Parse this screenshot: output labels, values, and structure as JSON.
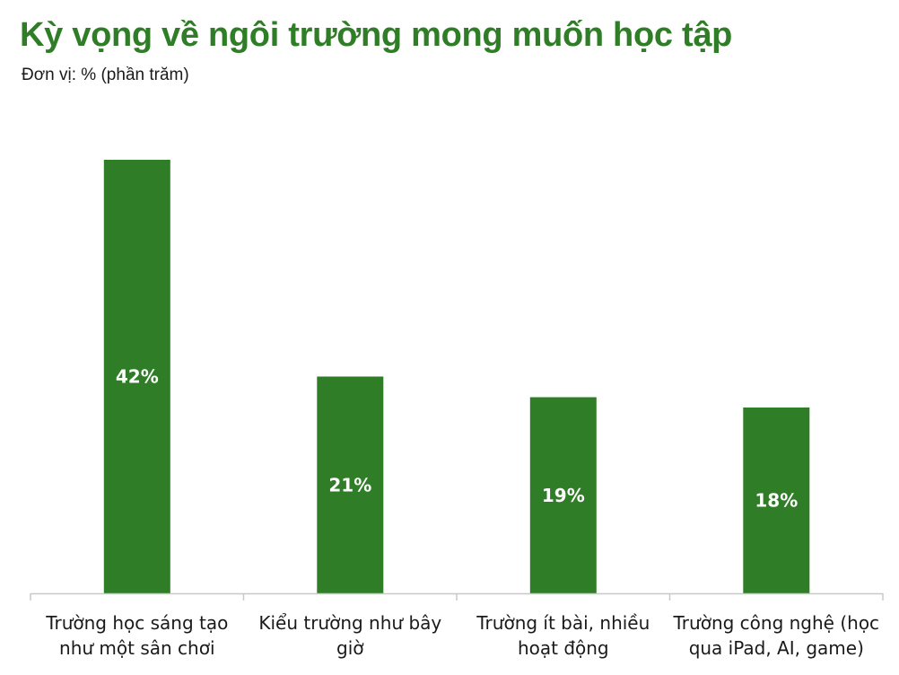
{
  "header": {
    "title": "Kỳ vọng về ngôi trường mong muốn học tập",
    "subtitle": "Đơn vị: % (phần trăm)"
  },
  "colors": {
    "bar": "#2f7d26",
    "title": "#2f7d26",
    "axis": "#c8c8c8"
  },
  "chart_data": {
    "type": "bar",
    "title": "Kỳ vọng về ngôi trường mong muốn học tập",
    "subtitle": "Đơn vị: % (phần trăm)",
    "categories": [
      [
        "Trường học sáng tạo",
        "như một sân chơi"
      ],
      [
        "Kiểu trường như bây",
        "giờ"
      ],
      [
        "Trường ít bài, nhiều",
        "hoạt động"
      ],
      [
        "Trường công nghệ (học",
        "qua iPad, AI, game)"
      ]
    ],
    "values": [
      42,
      21,
      19,
      18
    ],
    "value_labels": [
      "42%",
      "21%",
      "19%",
      "18%"
    ],
    "ylim": [
      0,
      42
    ],
    "grid": false,
    "legend": "none"
  }
}
